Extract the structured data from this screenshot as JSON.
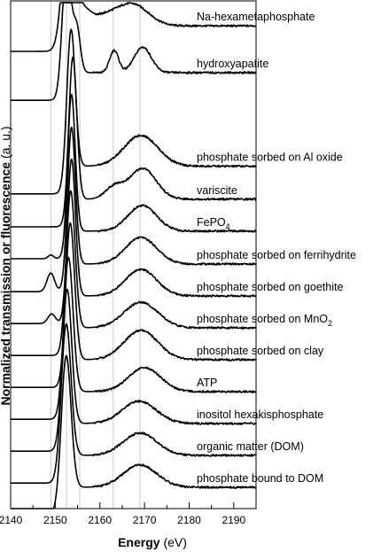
{
  "chart_data": {
    "type": "line",
    "xlabel_bold": "Energy",
    "xlabel_unit": " (eV)",
    "ylabel_bold": "Normalized transmission or fluorescence",
    "ylabel_unit": " (a. u.)",
    "xlim": [
      2140,
      2195
    ],
    "xticks": [
      2140,
      2150,
      2160,
      2170,
      2180,
      2190
    ],
    "reference_lines": [
      2149,
      2152.5,
      2155.5,
      2163,
      2169
    ],
    "series": [
      {
        "name": "Na-hexametaphosphate",
        "label": "Na-hexametaphosphate",
        "baseline": 1.0,
        "pos": 2153.0,
        "amp": 2.4,
        "sigma": 1.35,
        "post": 0.48,
        "features": [
          [
            2156.5,
            0.2,
            1.4
          ],
          [
            2160.5,
            0.18,
            4.0
          ],
          [
            2167.5,
            0.38,
            3.5
          ]
        ],
        "pre": []
      },
      {
        "name": "hydroxyapatite",
        "label": "hydroxyapatite",
        "baseline": 1.92,
        "pos": 2152.5,
        "amp": 2.25,
        "sigma": 0.95,
        "post": 0.52,
        "features": [
          [
            2154.8,
            0.85,
            0.8
          ],
          [
            2163.2,
            0.42,
            1.0
          ],
          [
            2169.6,
            0.48,
            1.9
          ]
        ],
        "pre": []
      },
      {
        "name": "phosphate sorbed on Al oxide",
        "label": "phosphate sorbed on Al oxide",
        "baseline": 3.68,
        "pos": 2153.5,
        "amp": 2.7,
        "sigma": 0.95,
        "post": 0.52,
        "features": [
          [
            2169.2,
            0.58,
            3.8
          ]
        ],
        "pre": []
      },
      {
        "name": "variscite",
        "label": "variscite",
        "baseline": 4.3,
        "pos": 2153.9,
        "amp": 2.8,
        "sigma": 0.9,
        "post": 0.52,
        "features": [
          [
            2163.2,
            0.22,
            2.0
          ],
          [
            2169.6,
            0.58,
            3.0
          ]
        ],
        "pre": []
      },
      {
        "name": "FePO4",
        "label": "FePO",
        "label_sub": "4",
        "baseline": 4.9,
        "pos": 2153.6,
        "amp": 2.7,
        "sigma": 0.85,
        "post": 0.52,
        "features": [
          [
            2169.5,
            0.48,
            3.2
          ]
        ],
        "pre": [
          [
            2149.0,
            0.07,
            0.6
          ]
        ]
      },
      {
        "name": "phosphate sorbed on ferrihydrite",
        "label": "phosphate sorbed on ferrihydrite",
        "baseline": 5.52,
        "pos": 2153.6,
        "amp": 2.7,
        "sigma": 0.9,
        "post": 0.52,
        "features": [
          [
            2169.2,
            0.5,
            3.5
          ]
        ],
        "pre": [
          [
            2149.0,
            0.35,
            0.85
          ]
        ]
      },
      {
        "name": "phosphate sorbed on goethite",
        "label": "phosphate sorbed on goethite",
        "baseline": 6.12,
        "pos": 2153.6,
        "amp": 2.7,
        "sigma": 0.9,
        "post": 0.52,
        "features": [
          [
            2169.2,
            0.5,
            3.5
          ]
        ],
        "pre": [
          [
            2149.2,
            0.18,
            0.85
          ]
        ]
      },
      {
        "name": "phosphate sorbed on MnO2",
        "label": "phosphate sorbed on MnO",
        "label_sub": "2",
        "baseline": 6.72,
        "pos": 2153.4,
        "amp": 2.7,
        "sigma": 1.0,
        "post": 0.52,
        "features": [
          [
            2169.2,
            0.48,
            3.8
          ]
        ],
        "pre": []
      },
      {
        "name": "phosphate sorbed on clay",
        "label": "phosphate sorbed on clay",
        "baseline": 7.32,
        "pos": 2153.3,
        "amp": 2.7,
        "sigma": 1.0,
        "post": 0.52,
        "features": [
          [
            2169.2,
            0.55,
            3.8
          ]
        ],
        "pre": []
      },
      {
        "name": "ATP",
        "label": "ATP",
        "baseline": 7.92,
        "pos": 2152.9,
        "amp": 2.65,
        "sigma": 1.05,
        "post": 0.52,
        "features": [
          [
            2170.0,
            0.45,
            3.6
          ]
        ],
        "pre": []
      },
      {
        "name": "inositol hexakisphosphate",
        "label": "inositol hexakisphosphate",
        "baseline": 8.52,
        "pos": 2152.6,
        "amp": 2.65,
        "sigma": 1.05,
        "post": 0.52,
        "features": [
          [
            2168.8,
            0.42,
            3.8
          ]
        ],
        "pre": []
      },
      {
        "name": "organic matter (DOM)",
        "label": "organic matter (DOM)",
        "baseline": 9.12,
        "pos": 2152.4,
        "amp": 2.6,
        "sigma": 1.1,
        "post": 0.52,
        "features": [
          [
            2169.0,
            0.42,
            3.8
          ]
        ],
        "pre": []
      },
      {
        "name": "phosphate bound to DOM",
        "label": "phosphate bound to DOM",
        "baseline": 9.72,
        "pos": 2152.4,
        "amp": 2.6,
        "sigma": 1.1,
        "post": 0.52,
        "features": [
          [
            2169.0,
            0.42,
            3.8
          ]
        ],
        "pre": []
      }
    ]
  }
}
